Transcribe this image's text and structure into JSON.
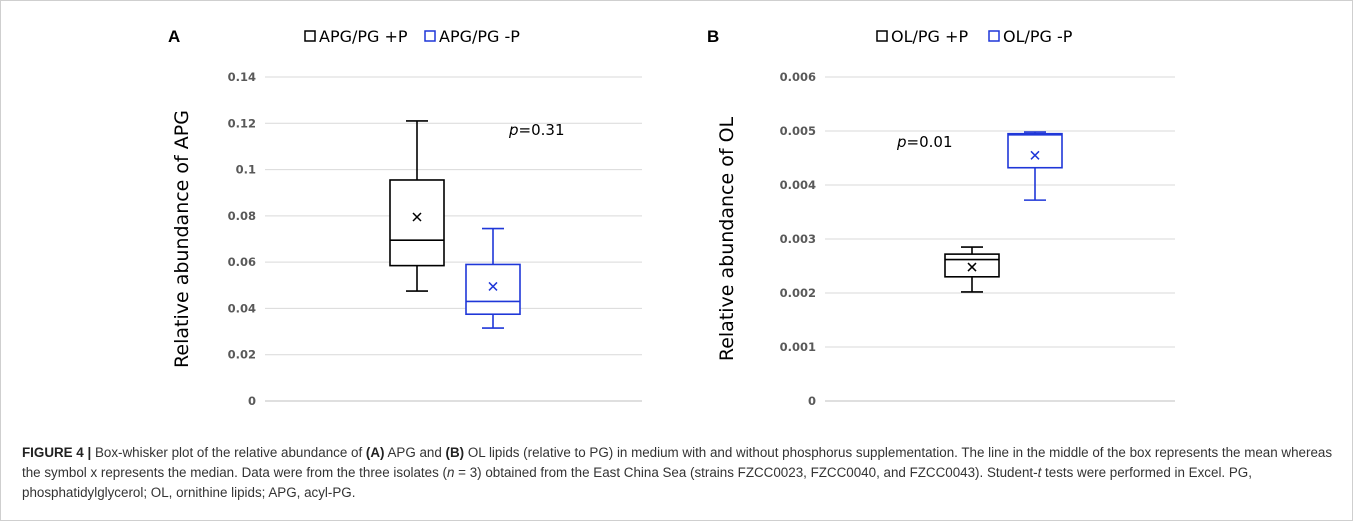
{
  "chart_data": [
    {
      "type": "box",
      "panel": "A",
      "ylabel": "Relative abundance of APG",
      "ylim": [
        0,
        0.14
      ],
      "yticks": [
        "0",
        "0.02",
        "0.04",
        "0.06",
        "0.08",
        "0.1",
        "0.12",
        "0.14"
      ],
      "grid": true,
      "legend_position": "top",
      "annotation": {
        "italic": "p",
        "text": "=0.31"
      },
      "series": [
        {
          "name": "APG/PG +P",
          "color": "#000000",
          "min": 0.0475,
          "q1": 0.0585,
          "median": 0.0695,
          "q3": 0.0955,
          "max": 0.121,
          "x_marker": 0.0795
        },
        {
          "name": "APG/PG -P",
          "color": "#1f37d8",
          "min": 0.0315,
          "q1": 0.0375,
          "median": 0.043,
          "q3": 0.059,
          "max": 0.0745,
          "x_marker": 0.0495
        }
      ]
    },
    {
      "type": "box",
      "panel": "B",
      "ylabel": "Relative abundance of OL",
      "ylim": [
        0,
        0.006
      ],
      "yticks": [
        "0",
        "0.001",
        "0.002",
        "0.003",
        "0.004",
        "0.005",
        "0.006"
      ],
      "grid": true,
      "legend_position": "top",
      "annotation": {
        "italic": "p",
        "text": "=0.01"
      },
      "series": [
        {
          "name": "OL/PG +P",
          "color": "#000000",
          "min": 0.00202,
          "q1": 0.0023,
          "median": 0.00262,
          "q3": 0.00272,
          "max": 0.00285,
          "x_marker": 0.00248
        },
        {
          "name": "OL/PG -P",
          "color": "#1f37d8",
          "min": 0.00372,
          "q1": 0.00432,
          "median": 0.00493,
          "q3": 0.00495,
          "max": 0.00498,
          "x_marker": 0.00455
        }
      ]
    }
  ],
  "caption": {
    "label": "FIGURE 4 |",
    "segments": [
      {
        "t": " Box-whisker plot of the relative abundance of ",
        "s": "n"
      },
      {
        "t": "(A)",
        "s": "b"
      },
      {
        "t": " APG and ",
        "s": "n"
      },
      {
        "t": "(B)",
        "s": "b"
      },
      {
        "t": " OL lipids (relative to PG) in medium with and without phosphorus supplementation. The line in the middle of the box represents the mean whereas the symbol x represents the median. Data were from the three isolates (",
        "s": "n"
      },
      {
        "t": "n",
        "s": "i"
      },
      {
        "t": " = 3) obtained from the East China Sea (strains FZCC0023, FZCC0040, and FZCC0043). Student-",
        "s": "n"
      },
      {
        "t": "t",
        "s": "i"
      },
      {
        "t": " tests were performed in Excel. PG, phosphatidylglycerol; OL, ornithine lipids; APG, acyl-PG.",
        "s": "n"
      }
    ]
  }
}
